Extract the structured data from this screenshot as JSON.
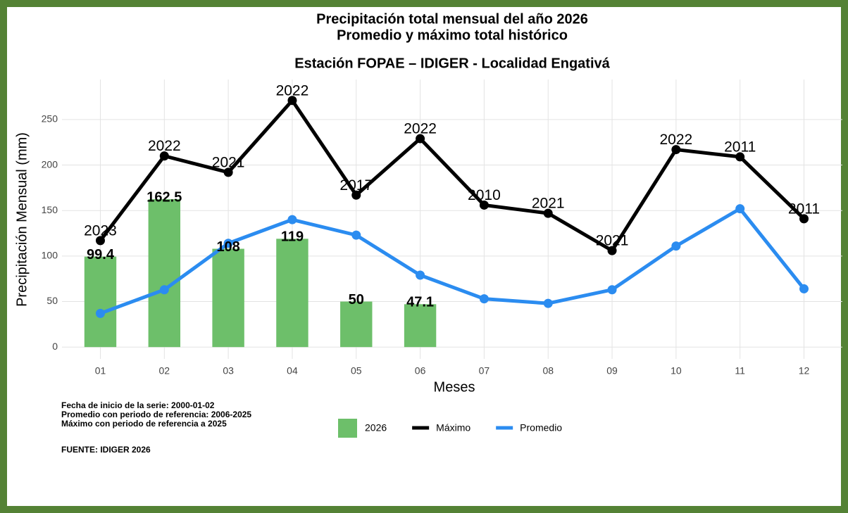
{
  "chart_data": {
    "type": "bar",
    "title": "Precipitación total mensual del año 2026",
    "subtitle": "Promedio y máximo total histórico",
    "subtitle2": "Estación FOPAE – IDIGER - Localidad Engativá",
    "x_label": "Meses",
    "y_label": "Precipitación Mensual (mm)",
    "categories": [
      "01",
      "02",
      "03",
      "04",
      "05",
      "06",
      "07",
      "08",
      "09",
      "10",
      "11",
      "12"
    ],
    "series": [
      {
        "name": "2026",
        "type": "bar",
        "color": "#6dbf6a",
        "values": [
          99.4,
          162.5,
          108,
          119,
          50,
          47.1,
          null,
          null,
          null,
          null,
          null,
          null
        ]
      },
      {
        "name": "Máximo",
        "type": "line",
        "color": "#000000",
        "values": [
          117,
          210,
          192,
          271,
          167,
          229,
          156,
          147,
          106,
          217,
          209,
          141
        ],
        "point_labels": [
          "2023",
          "2022",
          "2021",
          "2022",
          "2017",
          "2022",
          "2010",
          "2021",
          "2021",
          "2022",
          "2011",
          "2011"
        ]
      },
      {
        "name": "Promedio",
        "type": "line",
        "color": "#2b8cf0",
        "values": [
          37,
          63,
          114,
          140,
          123,
          79,
          53,
          48,
          63,
          111,
          152,
          64
        ]
      }
    ],
    "ylim": [
      -13,
      294
    ],
    "yticks": [
      0,
      50,
      100,
      150,
      200,
      250
    ],
    "grid": true,
    "notes": [
      "Fecha de inicio de la serie: 2000-01-02",
      "Promedio con periodo de referencia: 2006-2025",
      "Máximo con periodo de referencia a 2025"
    ],
    "source": "FUENTE: IDIGER 2026"
  }
}
